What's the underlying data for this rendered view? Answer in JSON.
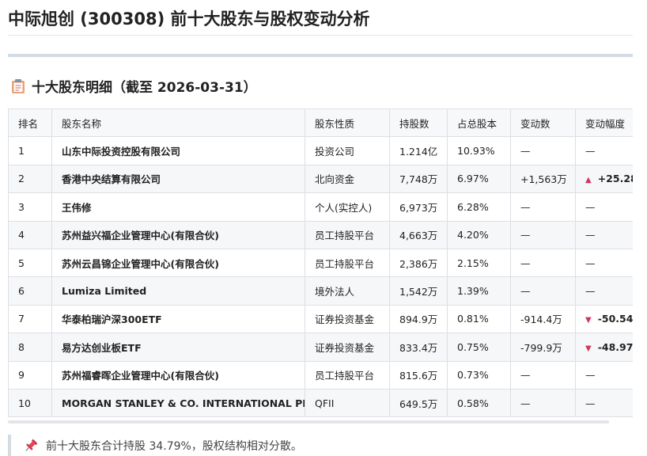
{
  "header": {
    "title": "中际旭创 (300308) 前十大股东与股权变动分析"
  },
  "section": {
    "title": "十大股东明细（截至 2026-03-31）"
  },
  "table": {
    "columns": [
      "排名",
      "股东名称",
      "股东性质",
      "持股数",
      "占总股本",
      "变动数",
      "变动幅度"
    ],
    "rows": [
      [
        "1",
        "山东中际投资控股有限公司",
        "投资公司",
        "1.214亿",
        "10.93%",
        "—",
        "—"
      ],
      [
        "2",
        "香港中央结算有限公司",
        "北向资金",
        "7,748万",
        "6.97%",
        "+1,563万",
        "+25.28"
      ],
      [
        "3",
        "王伟修",
        "个人(实控人)",
        "6,973万",
        "6.28%",
        "—",
        "—"
      ],
      [
        "4",
        "苏州益兴福企业管理中心(有限合伙)",
        "员工持股平台",
        "4,663万",
        "4.20%",
        "—",
        "—"
      ],
      [
        "5",
        "苏州云昌锦企业管理中心(有限合伙)",
        "员工持股平台",
        "2,386万",
        "2.15%",
        "—",
        "—"
      ],
      [
        "6",
        "Lumiza Limited",
        "境外法人",
        "1,542万",
        "1.39%",
        "—",
        "—"
      ],
      [
        "7",
        "华泰柏瑞沪深300ETF",
        "证券投资基金",
        "894.9万",
        "0.81%",
        "-914.4万",
        "-50.54"
      ],
      [
        "8",
        "易方达创业板ETF",
        "证券投资基金",
        "833.4万",
        "0.75%",
        "-799.9万",
        "-48.97"
      ],
      [
        "9",
        "苏州福睿晖企业管理中心(有限合伙)",
        "员工持股平台",
        "815.6万",
        "0.73%",
        "—",
        "—"
      ],
      [
        "10",
        "MORGAN STANLEY & CO. INTERNATIONAL PLC.",
        "QFII",
        "649.5万",
        "0.58%",
        "—",
        "—"
      ]
    ]
  },
  "note": {
    "text": "前十大股东合计持股 34.79%，股权结构相对分散。"
  }
}
